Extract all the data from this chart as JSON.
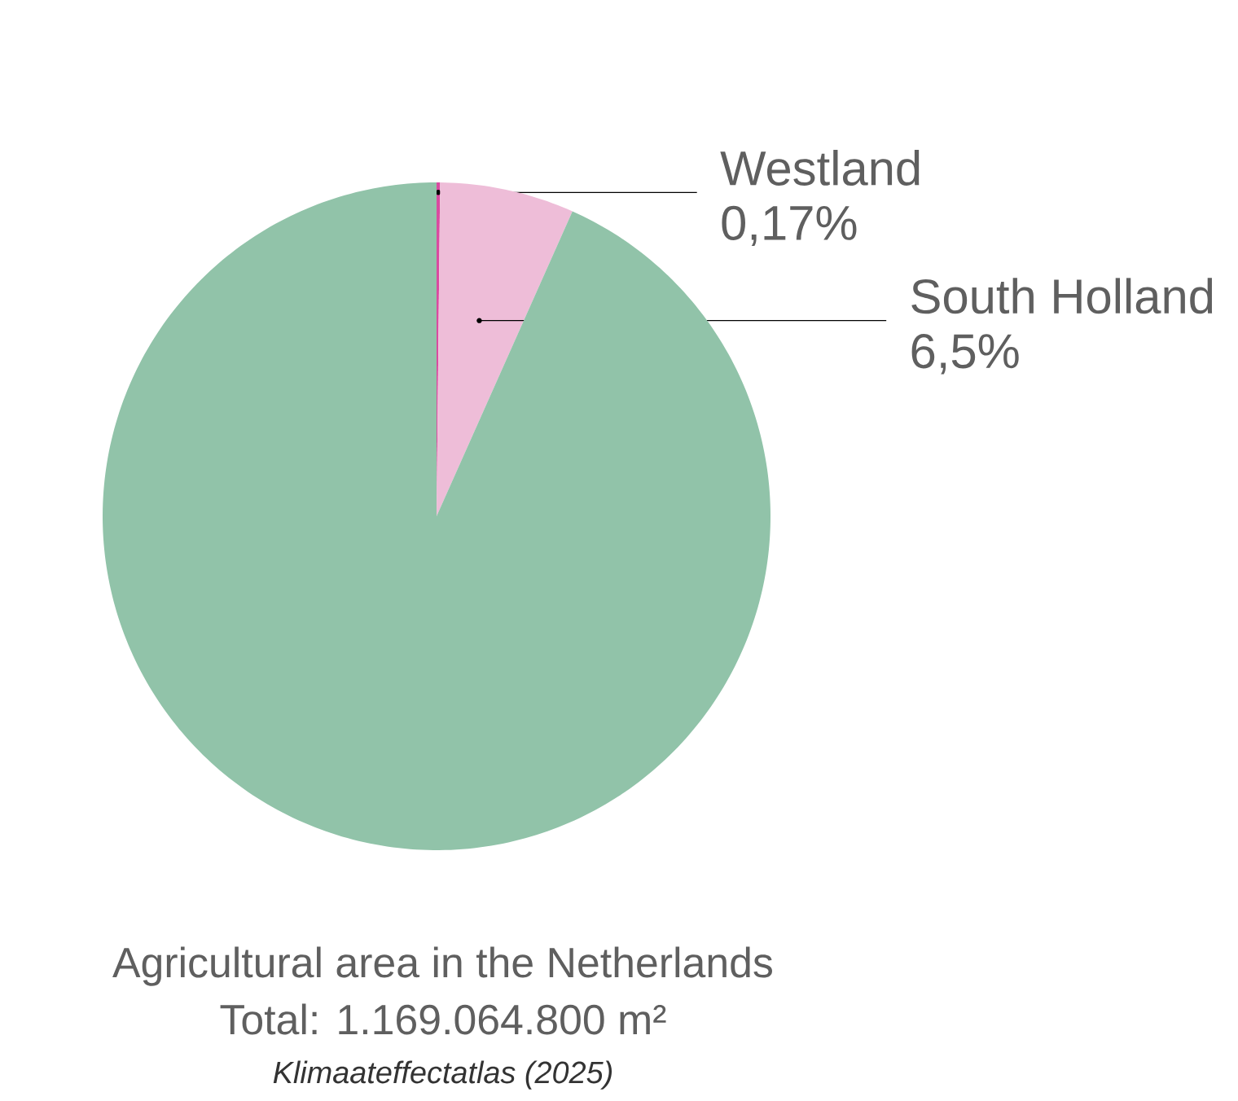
{
  "chart_data": {
    "type": "pie",
    "title": "Agricultural area in the Netherlands",
    "subtitle": "Total: 1.169.064.800 m²",
    "annotations": [
      "Klimaateffectatlas (2025)"
    ],
    "categories": [
      "Westland",
      "South Holland",
      null
    ],
    "values": [
      0.17,
      6.5,
      93.33
    ],
    "colors": [
      "#d94ba0",
      "#eebdd8",
      "#91c3a9"
    ],
    "value_labels": [
      "0,17%",
      "6,5%",
      null
    ]
  }
}
